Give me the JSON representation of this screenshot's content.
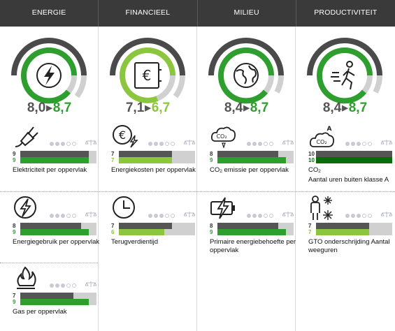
{
  "colors": {
    "header": "#3a3a3a",
    "green": "#2e9e2e",
    "lime": "#8cc63f",
    "darkgreen": "#0a6b0a",
    "grey": "#555555"
  },
  "tabs": [
    "ENERGIE",
    "FINANCIEEL",
    "MILIEU",
    "PRODUCTIVITEIT"
  ],
  "columns": [
    {
      "icon": "lightning-bolt-icon",
      "score_from": "8,0",
      "score_to": "8,7",
      "score_from_value": 8.0,
      "score_to_value": 8.7,
      "accent": "#2e9e2e",
      "metrics": [
        {
          "icon": "electric-plug-icon",
          "label": "Elektriciteit per oppervlak",
          "before": "9",
          "after": "9",
          "before_value": 9,
          "after_value": 9,
          "dots_filled": 3,
          "bar_color": "#2e9e2e"
        },
        {
          "icon": "lightning-circle-icon",
          "label": "Energiegebruik per oppervlak",
          "before": "8",
          "after": "9",
          "before_value": 8,
          "after_value": 9,
          "dots_filled": 3,
          "bar_color": "#2e9e2e"
        },
        {
          "icon": "gas-flame-icon",
          "label": "Gas per oppervlak",
          "before": "7",
          "after": "9",
          "before_value": 7,
          "after_value": 9,
          "dots_filled": 3,
          "bar_color": "#2e9e2e"
        }
      ]
    },
    {
      "icon": "euro-safe-icon",
      "score_from": "7,1",
      "score_to": "6,7",
      "score_from_value": 7.1,
      "score_to_value": 6.7,
      "accent": "#8cc63f",
      "metrics": [
        {
          "icon": "euro-lightning-icon",
          "label": "Energiekosten per oppervlak",
          "before": "7",
          "after": "7",
          "before_value": 7,
          "after_value": 7,
          "dots_filled": 3,
          "bar_color": "#8cc63f"
        },
        {
          "icon": "clock-icon",
          "label": "Terugverdientijd",
          "before": "7",
          "after": "6",
          "before_value": 7,
          "after_value": 6,
          "dots_filled": 3,
          "bar_color": "#8cc63f"
        }
      ]
    },
    {
      "icon": "globe-icon",
      "score_from": "8,4",
      "score_to": "8,7",
      "score_from_value": 8.4,
      "score_to_value": 8.7,
      "accent": "#2e9e2e",
      "metrics": [
        {
          "icon": "co2-cloud-icon",
          "label_main": "CO",
          "label_sub": "2",
          "label_rest": " emissie per oppervlak",
          "before": "8",
          "after": "9",
          "before_value": 8,
          "after_value": 9,
          "dots_filled": 3,
          "bar_color": "#2e9e2e"
        },
        {
          "icon": "battery-lightning-icon",
          "label": "Primaire energiebehoefte per oppervlak",
          "before": "8",
          "after": "9",
          "before_value": 8,
          "after_value": 9,
          "dots_filled": 3,
          "bar_color": "#2e9e2e"
        }
      ]
    },
    {
      "icon": "running-person-icon",
      "score_from": "8,4",
      "score_to": "8,7",
      "score_from_value": 8.4,
      "score_to_value": 8.7,
      "accent": "#2e9e2e",
      "metrics": [
        {
          "icon": "co2-cloud-a-icon",
          "label_main": "CO",
          "label_sub": "2",
          "label_rest": "Aantal uren buiten klasse A",
          "before": "10",
          "after": "10",
          "before_value": 10,
          "after_value": 10,
          "dots_filled": 3,
          "bar_color": "#0a6b0a"
        },
        {
          "icon": "person-climate-icon",
          "label": "GTO onderschrijding Aantal weeguren",
          "before": "7",
          "after": "7",
          "before_value": 7,
          "after_value": 7,
          "dots_filled": 3,
          "bar_color": "#8cc63f"
        }
      ]
    }
  ]
}
